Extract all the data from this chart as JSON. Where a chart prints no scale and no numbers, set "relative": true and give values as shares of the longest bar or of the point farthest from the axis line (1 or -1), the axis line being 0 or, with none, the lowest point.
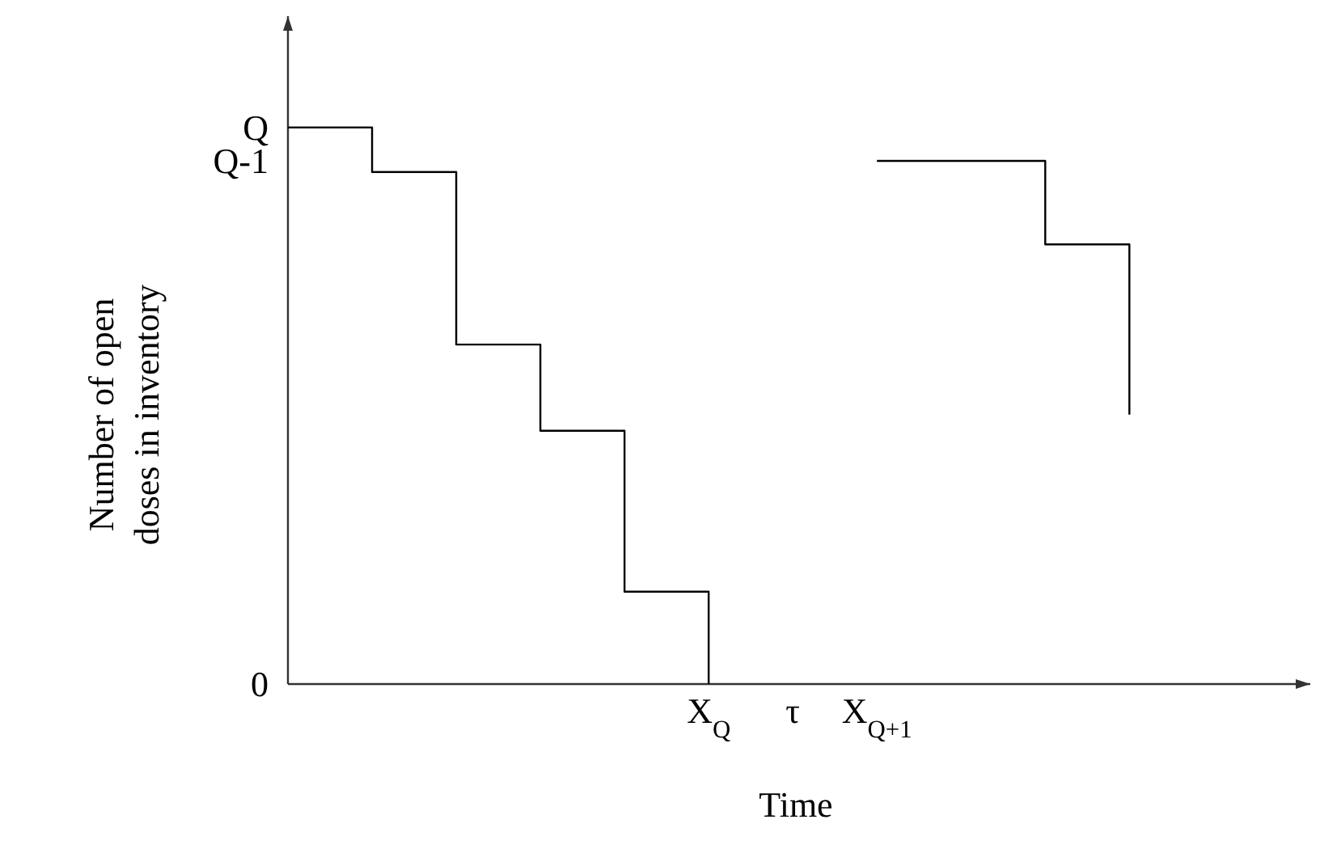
{
  "chart_data": {
    "type": "step",
    "xlabel": "Time",
    "ylabel": "Number of open doses in inventory",
    "relative": true,
    "categories": [
      null,
      null,
      null,
      null,
      null,
      "X$_{Q}$",
      "τ",
      "X$_{Q+1}$",
      null,
      null,
      null,
      null,
      null
    ],
    "annotations": [
      "Q",
      "Q-1",
      "0"
    ],
    "marker": "none",
    "line_style": "solid",
    "series": [
      {
        "color": "#000000",
        "values": [
          1,
          0.92,
          0.61,
          0.455,
          0.166,
          0,
          null,
          null,
          null,
          null,
          null,
          null,
          null
        ]
      },
      {
        "color": "#000000",
        "values": [
          null,
          null,
          null,
          null,
          null,
          null,
          null,
          0.94,
          null,
          0.79,
          0.484,
          null,
          null
        ]
      }
    ]
  }
}
